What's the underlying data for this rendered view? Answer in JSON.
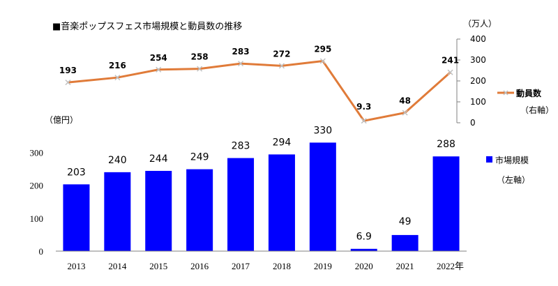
{
  "title": "■音楽ポップスフェス市場規模と動員数の推移",
  "chart_data": [
    {
      "type": "line",
      "name": "attendance",
      "categories": [
        "2013",
        "2014",
        "2015",
        "2016",
        "2017",
        "2018",
        "2019",
        "2020",
        "2021",
        "2022"
      ],
      "series": [
        {
          "name": "動員数",
          "values": [
            193,
            216,
            254,
            258,
            283,
            272,
            295,
            9.3,
            48,
            241
          ],
          "color": "#E07B39"
        }
      ],
      "data_labels": [
        "193",
        "216",
        "254",
        "258",
        "283",
        "272",
        "295",
        "9.3",
        "48",
        "241"
      ],
      "ylim": [
        0,
        400
      ],
      "yticks": [
        0,
        100,
        200,
        300,
        400
      ],
      "ylabel": "（万人）",
      "legend": {
        "label": "動員数",
        "sublabel": "（右軸）",
        "position": "right"
      },
      "marker": "x-marker",
      "grid": false
    },
    {
      "type": "bar",
      "name": "market-size",
      "categories": [
        "2013",
        "2014",
        "2015",
        "2016",
        "2017",
        "2018",
        "2019",
        "2020",
        "2021",
        "2022年"
      ],
      "series": [
        {
          "name": "市場規模",
          "values": [
            203,
            240,
            244,
            249,
            283,
            294,
            330,
            6.9,
            49,
            288
          ],
          "color": "#0000FF"
        }
      ],
      "data_labels": [
        "203",
        "240",
        "244",
        "249",
        "283",
        "294",
        "330",
        "6.9",
        "49",
        "288"
      ],
      "ylim": [
        0,
        350
      ],
      "yticks": [
        0,
        100,
        200,
        300
      ],
      "ylabel": "（億円）",
      "legend": {
        "label": "市場規模",
        "sublabel": "（左軸）",
        "position": "right"
      },
      "grid": false
    }
  ]
}
